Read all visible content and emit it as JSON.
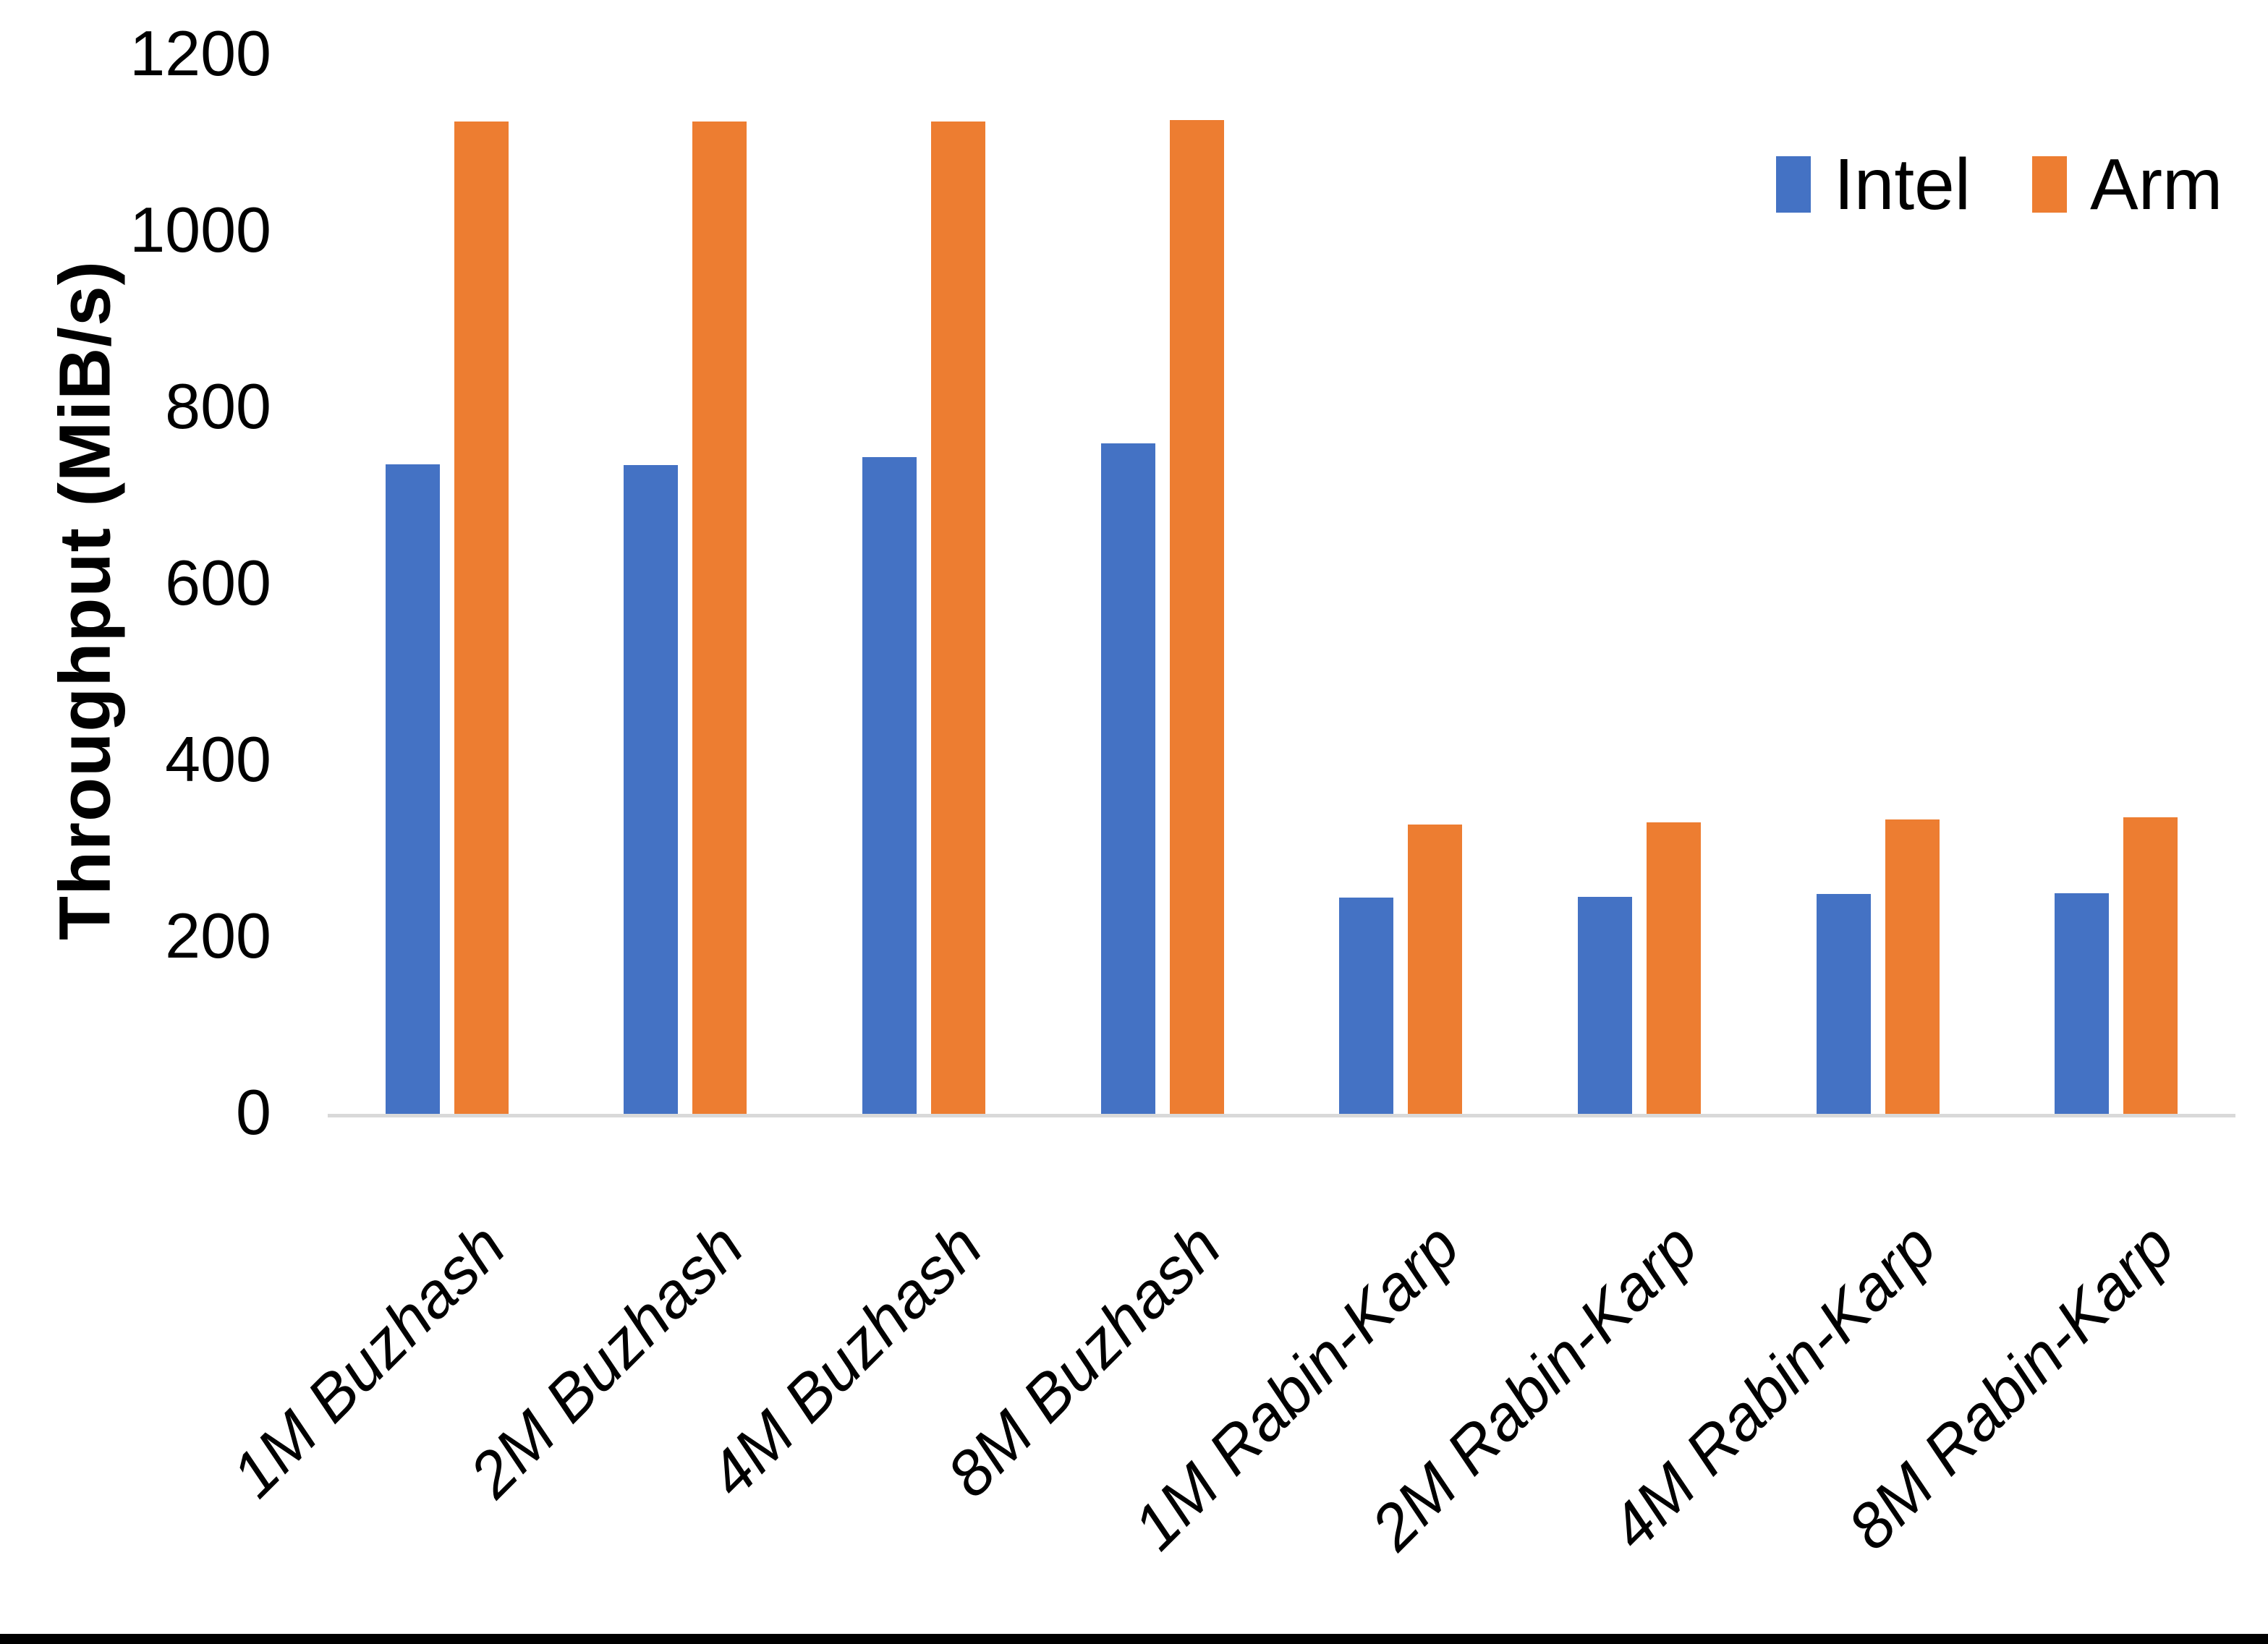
{
  "chart_data": {
    "type": "bar",
    "title": "",
    "ylabel": "Throughput (MiB/s)",
    "xlabel": "",
    "categories": [
      "1M Buzhash",
      "2M Buzhash",
      "4M Buzhash",
      "8M Buzhash",
      "1M Rabin-Karp",
      "2M Rabin-Karp",
      "4M Rabin-Karp",
      "8M Rabin-Karp"
    ],
    "series": [
      {
        "name": "Intel",
        "color": "#4472C4",
        "values": [
          736,
          735,
          744,
          760,
          245,
          246,
          249,
          250
        ]
      },
      {
        "name": "Arm",
        "color": "#ED7D31",
        "values": [
          1125,
          1125,
          1125,
          1126,
          328,
          330,
          334,
          336
        ]
      }
    ],
    "ylim": [
      0,
      1200
    ],
    "yticks": [
      0,
      200,
      400,
      600,
      800,
      1000,
      1200
    ],
    "grid": false,
    "legend_position": "top-right",
    "x_tick_rotation_deg": 45,
    "axis_line_color": "#D9D9D9"
  }
}
